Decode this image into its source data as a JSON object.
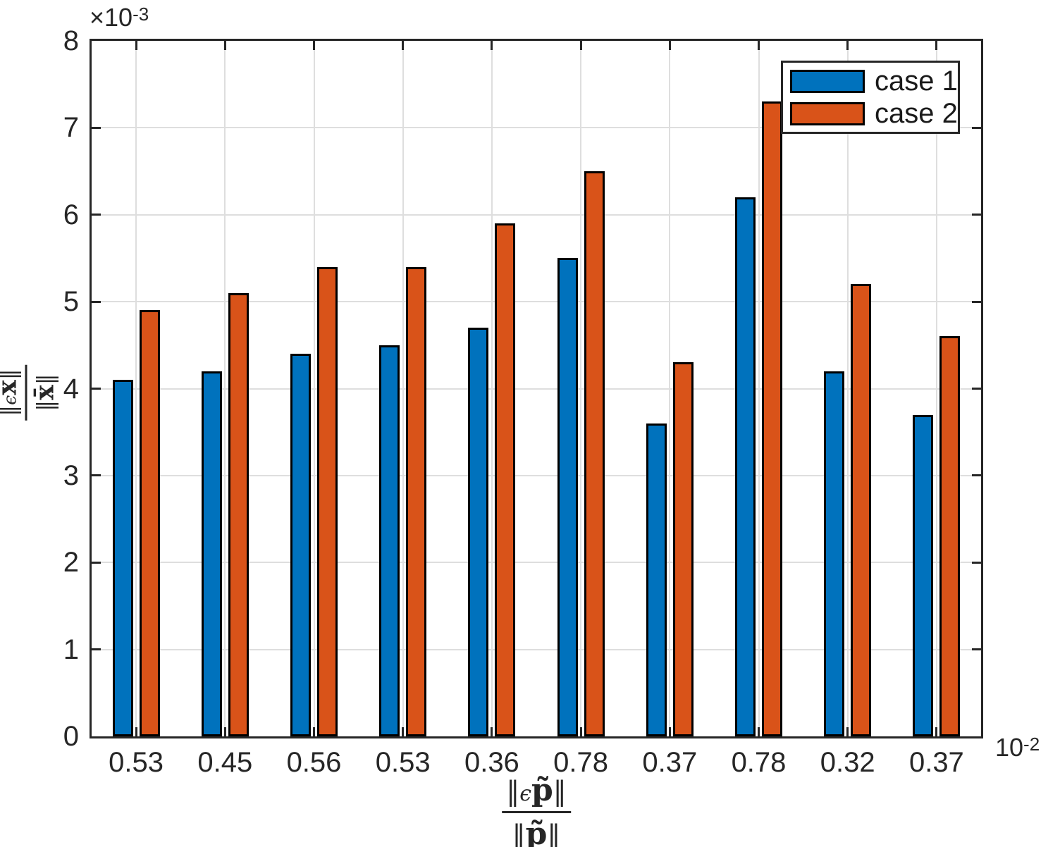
{
  "figure": {
    "background": "#ffffff",
    "axis_color": "#262626",
    "grid_color": "#dedede",
    "bar_edge_color": "#000000"
  },
  "chart_data": {
    "type": "bar",
    "title": "",
    "categories": [
      "0.53",
      "0.45",
      "0.56",
      "0.53",
      "0.36",
      "0.78",
      "0.37",
      "0.78",
      "0.32",
      "0.37"
    ],
    "series": [
      {
        "name": "case 1",
        "color": "#0072BD",
        "values": [
          4.1,
          4.2,
          4.4,
          4.5,
          4.7,
          5.5,
          3.6,
          6.2,
          4.2,
          3.7
        ]
      },
      {
        "name": "case 2",
        "color": "#D95319",
        "values": [
          4.9,
          5.1,
          5.4,
          5.4,
          5.9,
          6.5,
          4.3,
          7.3,
          5.2,
          4.6
        ]
      }
    ],
    "value_unit": "1e-3",
    "x_value_unit": "1e-2",
    "ylim": [
      0,
      8
    ],
    "yticks": [
      0,
      1,
      2,
      3,
      4,
      5,
      6,
      7,
      8
    ],
    "grid": true,
    "legend_position": "northeast",
    "y_multiplier": {
      "base": "×10",
      "exp": "-3"
    },
    "x_multiplier": {
      "base": "10",
      "exp": "-2"
    },
    "ylabel": {
      "num_open": "‖",
      "num_eps": "ϵ",
      "num_var": "x̄",
      "num_close": "‖",
      "den_open": "‖",
      "den_var": "x̄",
      "den_close": "‖"
    },
    "xlabel": {
      "num_open": "‖",
      "num_eps": "ϵ",
      "num_var": "p̃",
      "num_close": "‖",
      "den_open": "‖",
      "den_var": "p̃",
      "den_close": "‖"
    }
  },
  "legend": {
    "items": [
      {
        "label": "case 1",
        "color": "#0072BD"
      },
      {
        "label": "case 2",
        "color": "#D95319"
      }
    ]
  }
}
